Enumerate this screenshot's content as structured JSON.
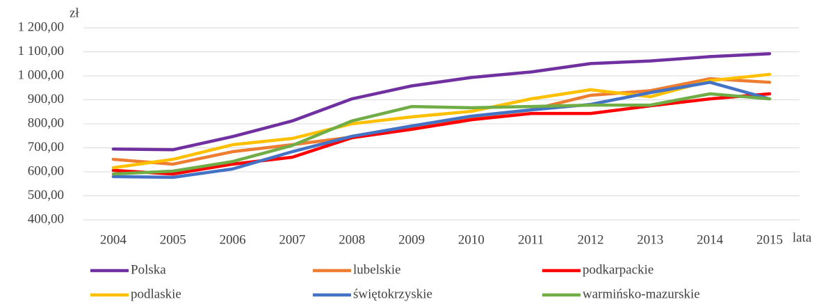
{
  "chart_data": {
    "type": "line",
    "y_label": "zł",
    "x_label": "lata",
    "categories": [
      "2004",
      "2005",
      "2006",
      "2007",
      "2008",
      "2009",
      "2010",
      "2011",
      "2012",
      "2013",
      "2014",
      "2015"
    ],
    "series": [
      {
        "name": "Polska",
        "color": "#7030a0",
        "values": [
          695,
          692,
          747,
          812,
          904,
          958,
          993,
          1016,
          1051,
          1062,
          1080,
          1092
        ]
      },
      {
        "name": "lubelskie",
        "color": "#ed7d31",
        "values": [
          652,
          632,
          684,
          713,
          745,
          780,
          829,
          858,
          919,
          938,
          988,
          973
        ]
      },
      {
        "name": "podkarpackie",
        "color": "#ff0000",
        "values": [
          606,
          591,
          632,
          661,
          742,
          777,
          817,
          843,
          843,
          875,
          904,
          925
        ]
      },
      {
        "name": "podlaskie",
        "color": "#ffc000",
        "values": [
          617,
          652,
          713,
          739,
          800,
          829,
          852,
          904,
          942,
          913,
          980,
          1006
        ]
      },
      {
        "name": "świętokrzyskie",
        "color": "#4472c4",
        "values": [
          580,
          577,
          612,
          684,
          748,
          791,
          832,
          858,
          881,
          930,
          973,
          904
        ]
      },
      {
        "name": "warmińsko-mazurskie",
        "color": "#70ad47",
        "values": [
          591,
          603,
          643,
          710,
          812,
          872,
          867,
          872,
          878,
          878,
          925,
          904
        ]
      }
    ],
    "ylim": [
      400,
      1200
    ],
    "yticks": [
      {
        "value": 400,
        "label": "400,00"
      },
      {
        "value": 500,
        "label": "500,00"
      },
      {
        "value": 600,
        "label": "600,00"
      },
      {
        "value": 700,
        "label": "700,00"
      },
      {
        "value": 800,
        "label": "800,00"
      },
      {
        "value": 900,
        "label": "900,00"
      },
      {
        "value": 1000,
        "label": "1 000,00"
      },
      {
        "value": 1100,
        "label": "1 100,00"
      },
      {
        "value": 1200,
        "label": "1 200,00"
      }
    ],
    "grid": true
  }
}
